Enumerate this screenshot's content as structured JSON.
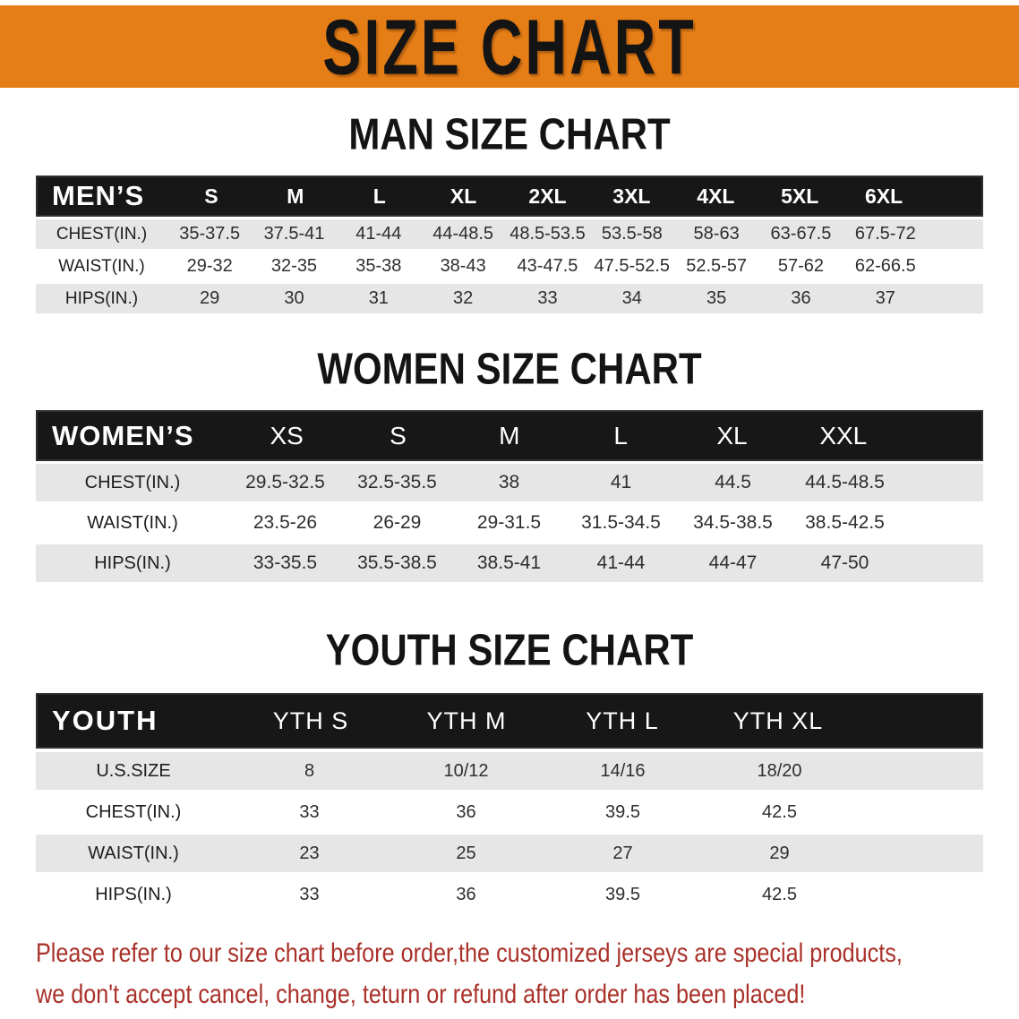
{
  "banner": {
    "title": "SIZE CHART"
  },
  "colors": {
    "banner_bg": "#E67E17",
    "header_bg": "#171717",
    "row_gray": "#E6E6E6",
    "footer_red": "#A93129"
  },
  "men": {
    "heading": "MAN SIZE CHART",
    "header_label": "MEN’S",
    "sizes": [
      "S",
      "M",
      "L",
      "XL",
      "2XL",
      "3XL",
      "4XL",
      "5XL",
      "6XL"
    ],
    "rows": [
      {
        "label": "CHEST(IN.)",
        "values": [
          "35-37.5",
          "37.5-41",
          "41-44",
          "44-48.5",
          "48.5-53.5",
          "53.5-58",
          "58-63",
          "63-67.5",
          "67.5-72"
        ]
      },
      {
        "label": "WAIST(IN.)",
        "values": [
          "29-32",
          "32-35",
          "35-38",
          "38-43",
          "43-47.5",
          "47.5-52.5",
          "52.5-57",
          "57-62",
          "62-66.5"
        ]
      },
      {
        "label": "HIPS(IN.)",
        "values": [
          "29",
          "30",
          "31",
          "32",
          "33",
          "34",
          "35",
          "36",
          "37"
        ]
      }
    ]
  },
  "women": {
    "heading": "WOMEN SIZE CHART",
    "header_label": "WOMEN’S",
    "sizes": [
      "XS",
      "S",
      "M",
      "L",
      "XL",
      "XXL"
    ],
    "rows": [
      {
        "label": "CHEST(IN.)",
        "values": [
          "29.5-32.5",
          "32.5-35.5",
          "38",
          "41",
          "44.5",
          "44.5-48.5"
        ]
      },
      {
        "label": "WAIST(IN.)",
        "values": [
          "23.5-26",
          "26-29",
          "29-31.5",
          "31.5-34.5",
          "34.5-38.5",
          "38.5-42.5"
        ]
      },
      {
        "label": "HIPS(IN.)",
        "values": [
          "33-35.5",
          "35.5-38.5",
          "38.5-41",
          "41-44",
          "44-47",
          "47-50"
        ]
      }
    ]
  },
  "youth": {
    "heading": "YOUTH SIZE CHART",
    "header_label": "YOUTH",
    "sizes": [
      "YTH S",
      "YTH M",
      "YTH L",
      "YTH XL"
    ],
    "rows": [
      {
        "label": "U.S.SIZE",
        "values": [
          "8",
          "10/12",
          "14/16",
          "18/20"
        ]
      },
      {
        "label": "CHEST(IN.)",
        "values": [
          "33",
          "36",
          "39.5",
          "42.5"
        ]
      },
      {
        "label": "WAIST(IN.)",
        "values": [
          "23",
          "25",
          "27",
          "29"
        ]
      },
      {
        "label": "HIPS(IN.)",
        "values": [
          "33",
          "36",
          "39.5",
          "42.5"
        ]
      }
    ]
  },
  "footer": {
    "line1": "Please refer to our size chart before order,the customized jerseys are special products,",
    "line2": "we don't accept cancel, change, teturn or refund after order has been placed!"
  }
}
